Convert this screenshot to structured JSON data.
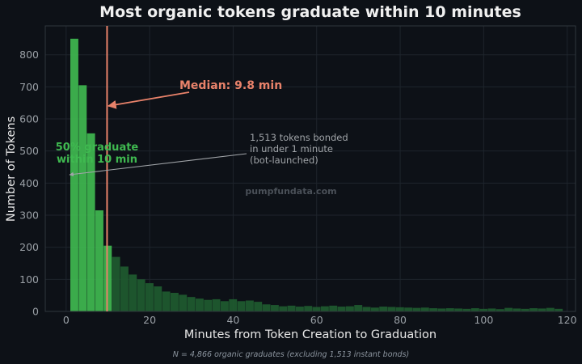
{
  "chart_data": {
    "type": "bar",
    "title": "Most organic tokens graduate within 10 minutes",
    "xlabel": "Minutes from Token Creation to Graduation",
    "ylabel": "Number of Tokens",
    "xlim": [
      -5,
      122
    ],
    "ylim": [
      0,
      890
    ],
    "xticks": [
      0,
      20,
      40,
      60,
      80,
      100,
      120
    ],
    "yticks": [
      0,
      100,
      200,
      300,
      400,
      500,
      600,
      700,
      800
    ],
    "grid": true,
    "bin_width": 2,
    "bins_start": [
      1,
      3,
      5,
      7,
      9,
      11,
      13,
      15,
      17,
      19,
      21,
      23,
      25,
      27,
      29,
      31,
      33,
      35,
      37,
      39,
      41,
      43,
      45,
      47,
      49,
      51,
      53,
      55,
      57,
      59,
      61,
      63,
      65,
      67,
      69,
      71,
      73,
      75,
      77,
      79,
      81,
      83,
      85,
      87,
      89,
      91,
      93,
      95,
      97,
      99,
      101,
      103,
      105,
      107,
      109,
      111,
      113,
      115,
      117
    ],
    "values": [
      850,
      705,
      555,
      315,
      205,
      170,
      140,
      115,
      100,
      88,
      78,
      62,
      58,
      52,
      45,
      40,
      36,
      38,
      32,
      38,
      32,
      34,
      30,
      22,
      20,
      16,
      18,
      15,
      17,
      14,
      16,
      18,
      15,
      16,
      20,
      14,
      12,
      15,
      14,
      13,
      12,
      11,
      12,
      10,
      9,
      10,
      9,
      8,
      10,
      8,
      9,
      7,
      11,
      9,
      8,
      10,
      9,
      11,
      8
    ],
    "median": 9.8,
    "colors": {
      "bright": "#3fb950",
      "dark": "#1f5a2e",
      "median": "#e8826a",
      "background": "#0d1117"
    }
  },
  "annotations": {
    "median_label": "Median: 9.8 min",
    "pct_line1": "50% graduate",
    "pct_line2": "within 10 min",
    "bot_line1": "1,513 tokens bonded",
    "bot_line2": "in under 1 minute",
    "bot_line3": "(bot-launched)"
  },
  "watermark": "pumpfundata.com",
  "footnote": "N = 4,866 organic graduates (excluding 1,513 instant bonds)"
}
